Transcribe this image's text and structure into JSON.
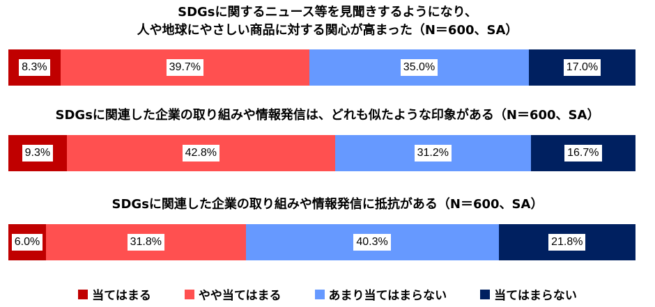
{
  "chart_data": {
    "type": "stacked-bar-100",
    "legend": [
      {
        "label": "当てはまる",
        "color": "#c00000"
      },
      {
        "label": "やや当てはまる",
        "color": "#ff5050"
      },
      {
        "label": "あまり当てはまらない",
        "color": "#6699ff"
      },
      {
        "label": "当てはまらない",
        "color": "#002060"
      }
    ],
    "legend_position": "bottom",
    "bars": [
      {
        "title_lines": [
          "SDGsに関するニュース等を見聞きするようになり、",
          "人や地球にやさしい商品に対する関心が高まった（N＝600、SA）"
        ],
        "values": [
          8.3,
          39.7,
          35.0,
          17.0
        ],
        "labels": [
          "8.3%",
          "39.7%",
          "35.0%",
          "17.0%"
        ]
      },
      {
        "title_lines": [
          "SDGsに関連した企業の取り組みや情報発信は、どれも似たような印象がある（N＝600、SA）"
        ],
        "values": [
          9.3,
          42.8,
          31.2,
          16.7
        ],
        "labels": [
          "9.3%",
          "42.8%",
          "31.2%",
          "16.7%"
        ]
      },
      {
        "title_lines": [
          "SDGsに関連した企業の取り組みや情報発信に抵抗がある（N＝600、SA）"
        ],
        "values": [
          6.0,
          31.8,
          40.3,
          21.8
        ],
        "labels": [
          "6.0%",
          "31.8%",
          "40.3%",
          "21.8%"
        ]
      }
    ]
  }
}
